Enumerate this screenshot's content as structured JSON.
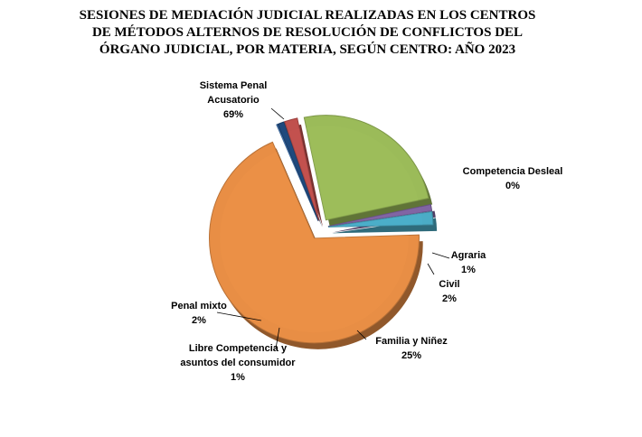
{
  "chart_data": {
    "type": "pie",
    "title_lines": [
      "SESIONES DE MEDIACIÓN JUDICIAL REALIZADAS  EN LOS CENTROS",
      "DE MÉTODOS ALTERNOS DE RESOLUCIÓN DE CONFLICTOS  DEL",
      "ÓRGANO JUDICIAL, POR MATERIA, SEGÚN CENTRO: AÑO 2023"
    ],
    "slices": [
      {
        "label_lines": [
          "Sistema Penal",
          "Acusatorio"
        ],
        "percent_label": "69%",
        "value": 69,
        "color": "#E88E45"
      },
      {
        "label_lines": [
          "Competencia Desleal"
        ],
        "percent_label": "0%",
        "value": 0,
        "color": "#4F81BD"
      },
      {
        "label_lines": [
          "Agraria"
        ],
        "percent_label": "1%",
        "value": 1,
        "color": "#1F497D"
      },
      {
        "label_lines": [
          "Civil"
        ],
        "percent_label": "2%",
        "value": 2,
        "color": "#C0504D"
      },
      {
        "label_lines": [
          "Familia  y Niñez"
        ],
        "percent_label": "25%",
        "value": 25,
        "color": "#9BBB59"
      },
      {
        "label_lines": [
          "Libre Competencia y",
          "asuntos del consumidor"
        ],
        "percent_label": "1%",
        "value": 1,
        "color": "#8064A2"
      },
      {
        "label_lines": [
          "Penal mixto"
        ],
        "percent_label": "2%",
        "value": 2,
        "color": "#4BACC6"
      }
    ]
  }
}
